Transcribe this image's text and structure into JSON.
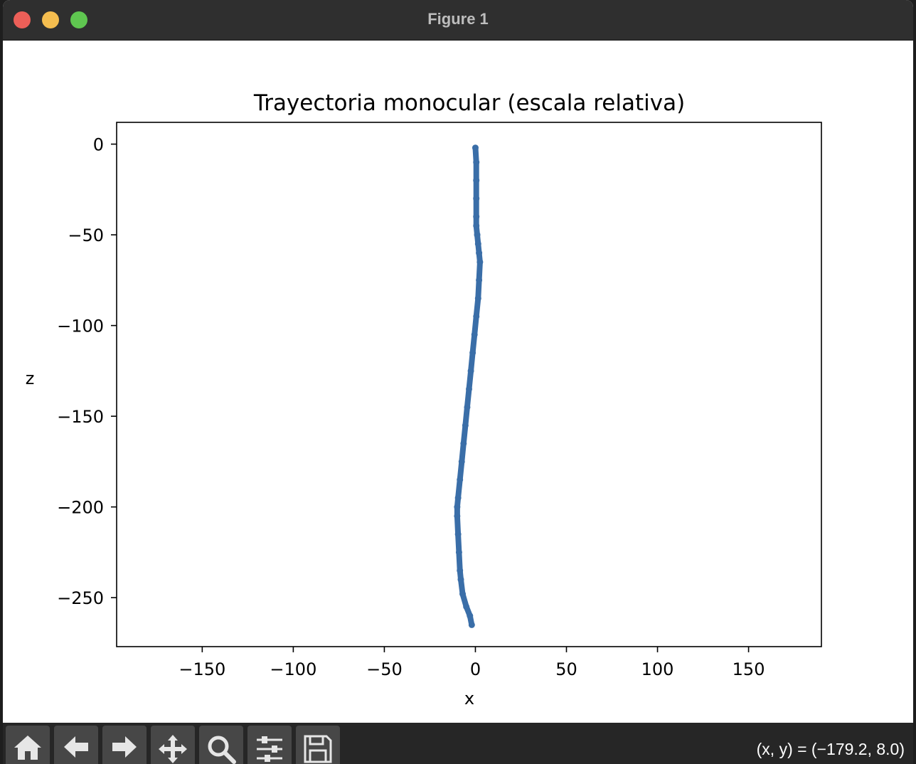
{
  "window": {
    "title": "Figure 1"
  },
  "toolbar": {
    "buttons": [
      {
        "name": "home",
        "icon": "home-icon"
      },
      {
        "name": "back",
        "icon": "arrow-left-icon"
      },
      {
        "name": "forward",
        "icon": "arrow-right-icon"
      },
      {
        "name": "pan",
        "icon": "move-icon"
      },
      {
        "name": "zoom",
        "icon": "magnifier-icon"
      },
      {
        "name": "configure-subplots",
        "icon": "sliders-icon"
      },
      {
        "name": "save",
        "icon": "floppy-disk-icon"
      }
    ],
    "coords": "(x, y) = (−179.2, 8.0)"
  },
  "chart_data": {
    "type": "line",
    "title": "Trayectoria monocular (escala relativa)",
    "xlabel": "x",
    "ylabel": "z",
    "xlim": [
      -197,
      190
    ],
    "ylim": [
      -277,
      12
    ],
    "x_ticks": [
      -150,
      -100,
      -50,
      0,
      50,
      100,
      150
    ],
    "x_tick_labels": [
      "−150",
      "−100",
      "−50",
      "0",
      "50",
      "100",
      "150"
    ],
    "y_ticks": [
      0,
      -50,
      -100,
      -150,
      -200,
      -250
    ],
    "y_tick_labels": [
      "0",
      "−50",
      "−100",
      "−150",
      "−200",
      "−250"
    ],
    "grid": false,
    "color": "#3a6ea8",
    "series": [
      {
        "name": "",
        "x": [
          0,
          0.5,
          0.5,
          0.5,
          0.5,
          0.5,
          1,
          1.5,
          2,
          2.5,
          2,
          1.5,
          0.5,
          -0.5,
          -1.5,
          -2.5,
          -3.5,
          -4.5,
          -5.5,
          -6.5,
          -7.5,
          -8.5,
          -9.5,
          -10,
          -10,
          -9.5,
          -9,
          -8.5,
          -8,
          -7,
          -5,
          -3,
          -2
        ],
        "y": [
          -2,
          -10,
          -20,
          -30,
          -40,
          -45,
          -50,
          -55,
          -60,
          -65,
          -75,
          -85,
          -95,
          -105,
          -115,
          -125,
          -135,
          -145,
          -155,
          -165,
          -175,
          -185,
          -195,
          -200,
          -205,
          -215,
          -225,
          -235,
          -240,
          -248,
          -255,
          -260,
          -265
        ]
      }
    ]
  }
}
